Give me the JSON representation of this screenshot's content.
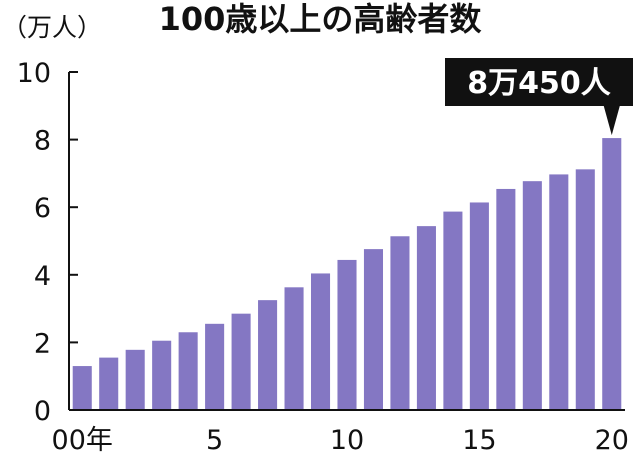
{
  "chart_data": {
    "type": "bar",
    "title": "100歳以上の高齢者数",
    "ylabel": "（万人）",
    "xlabel": "",
    "categories": [
      "00",
      "01",
      "02",
      "03",
      "04",
      "05",
      "06",
      "07",
      "08",
      "09",
      "10",
      "11",
      "12",
      "13",
      "14",
      "15",
      "16",
      "17",
      "18",
      "19",
      "20"
    ],
    "x_tick_labels": [
      {
        "category": "00",
        "label": "00年"
      },
      {
        "category": "05",
        "label": "5"
      },
      {
        "category": "10",
        "label": "10"
      },
      {
        "category": "15",
        "label": "15"
      },
      {
        "category": "20",
        "label": "20"
      }
    ],
    "values": [
      1.3,
      1.55,
      1.78,
      2.05,
      2.3,
      2.55,
      2.85,
      3.25,
      3.63,
      4.04,
      4.44,
      4.76,
      5.14,
      5.44,
      5.87,
      6.14,
      6.54,
      6.77,
      6.97,
      7.12,
      8.045
    ],
    "ylim": [
      0,
      10
    ],
    "yticks": [
      0,
      2,
      4,
      6,
      8,
      10
    ],
    "bar_color": "#8477c3",
    "grid": false,
    "annotation": {
      "category": "20",
      "text": "8万450人",
      "background": "#111111",
      "color": "#ffffff"
    }
  }
}
